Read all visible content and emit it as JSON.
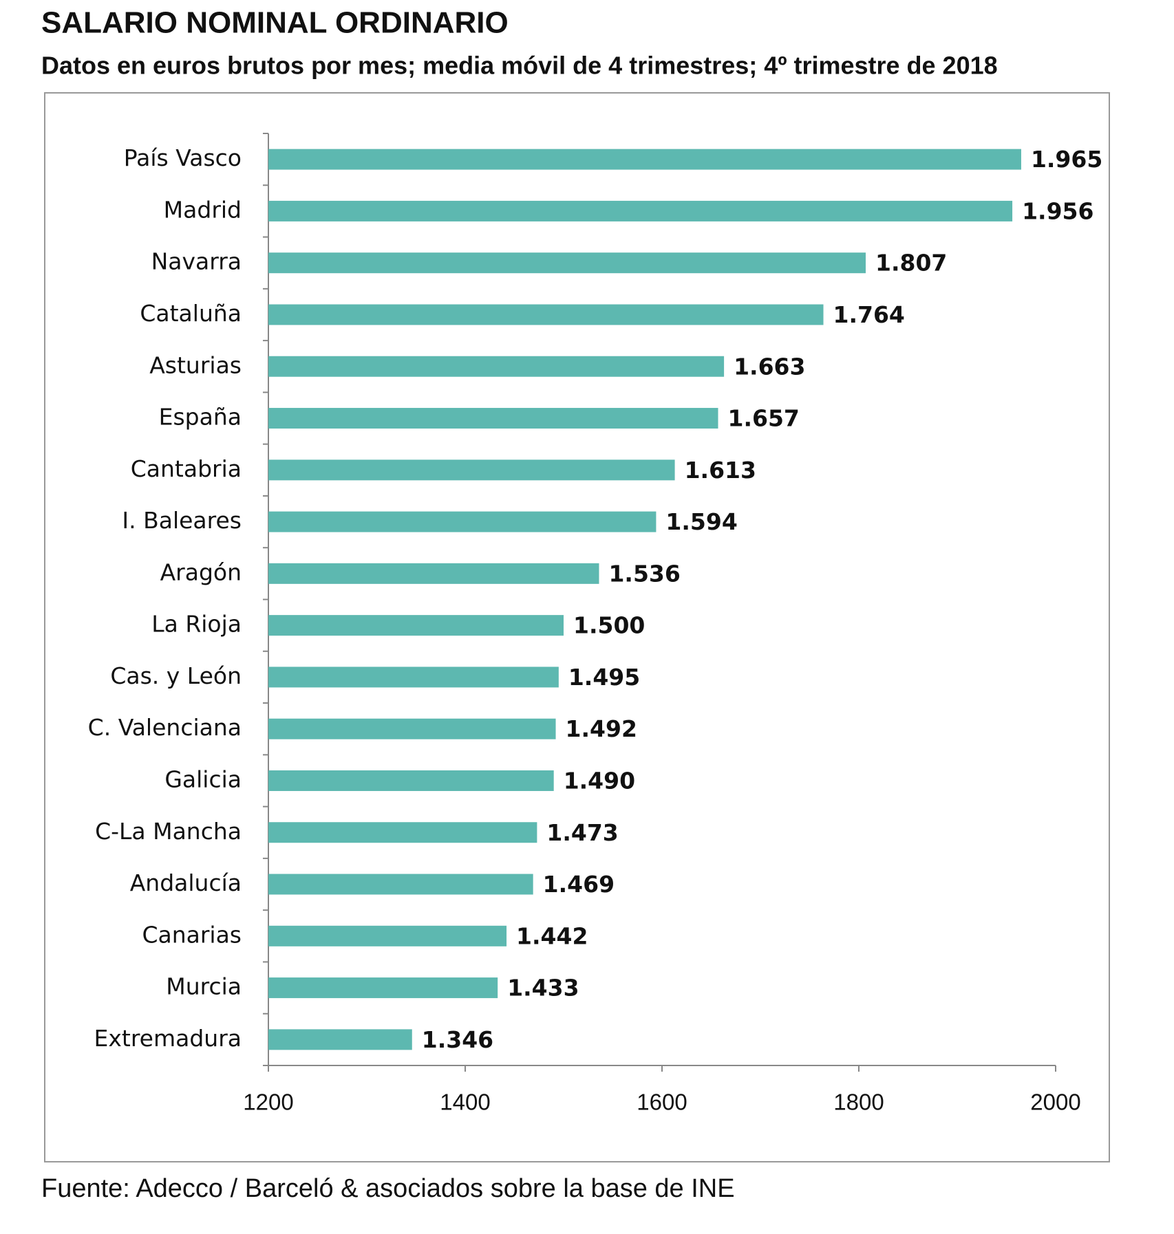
{
  "chart_data": {
    "type": "hbar",
    "title": "SALARIO NOMINAL ORDINARIO",
    "subtitle": "Datos en euros brutos por mes; media móvil de 4 trimestres; 4º trimestre de 2018",
    "source": "Fuente: Adecco / Barceló & asociados sobre la base de INE",
    "categories": [
      "País Vasco",
      "Madrid",
      "Navarra",
      "Cataluña",
      "Asturias",
      "España",
      "Cantabria",
      "I. Baleares",
      "Aragón",
      "La Rioja",
      "Cas. y León",
      "C. Valenciana",
      "Galicia",
      "C-La Mancha",
      "Andalucía",
      "Canarias",
      "Murcia",
      "Extremadura"
    ],
    "values": [
      1965,
      1956,
      1807,
      1764,
      1663,
      1657,
      1613,
      1594,
      1536,
      1500,
      1495,
      1492,
      1490,
      1473,
      1469,
      1442,
      1433,
      1346
    ],
    "value_labels": [
      "1.965",
      "1.956",
      "1.807",
      "1.764",
      "1.663",
      "1.657",
      "1.613",
      "1.594",
      "1.536",
      "1.500",
      "1.495",
      "1.492",
      "1.490",
      "1.473",
      "1.469",
      "1.442",
      "1.433",
      "1.346"
    ],
    "color": "#5db8b0",
    "xlim": [
      1200,
      2000
    ],
    "xticks": [
      1200,
      1400,
      1600,
      1800,
      2000
    ]
  }
}
